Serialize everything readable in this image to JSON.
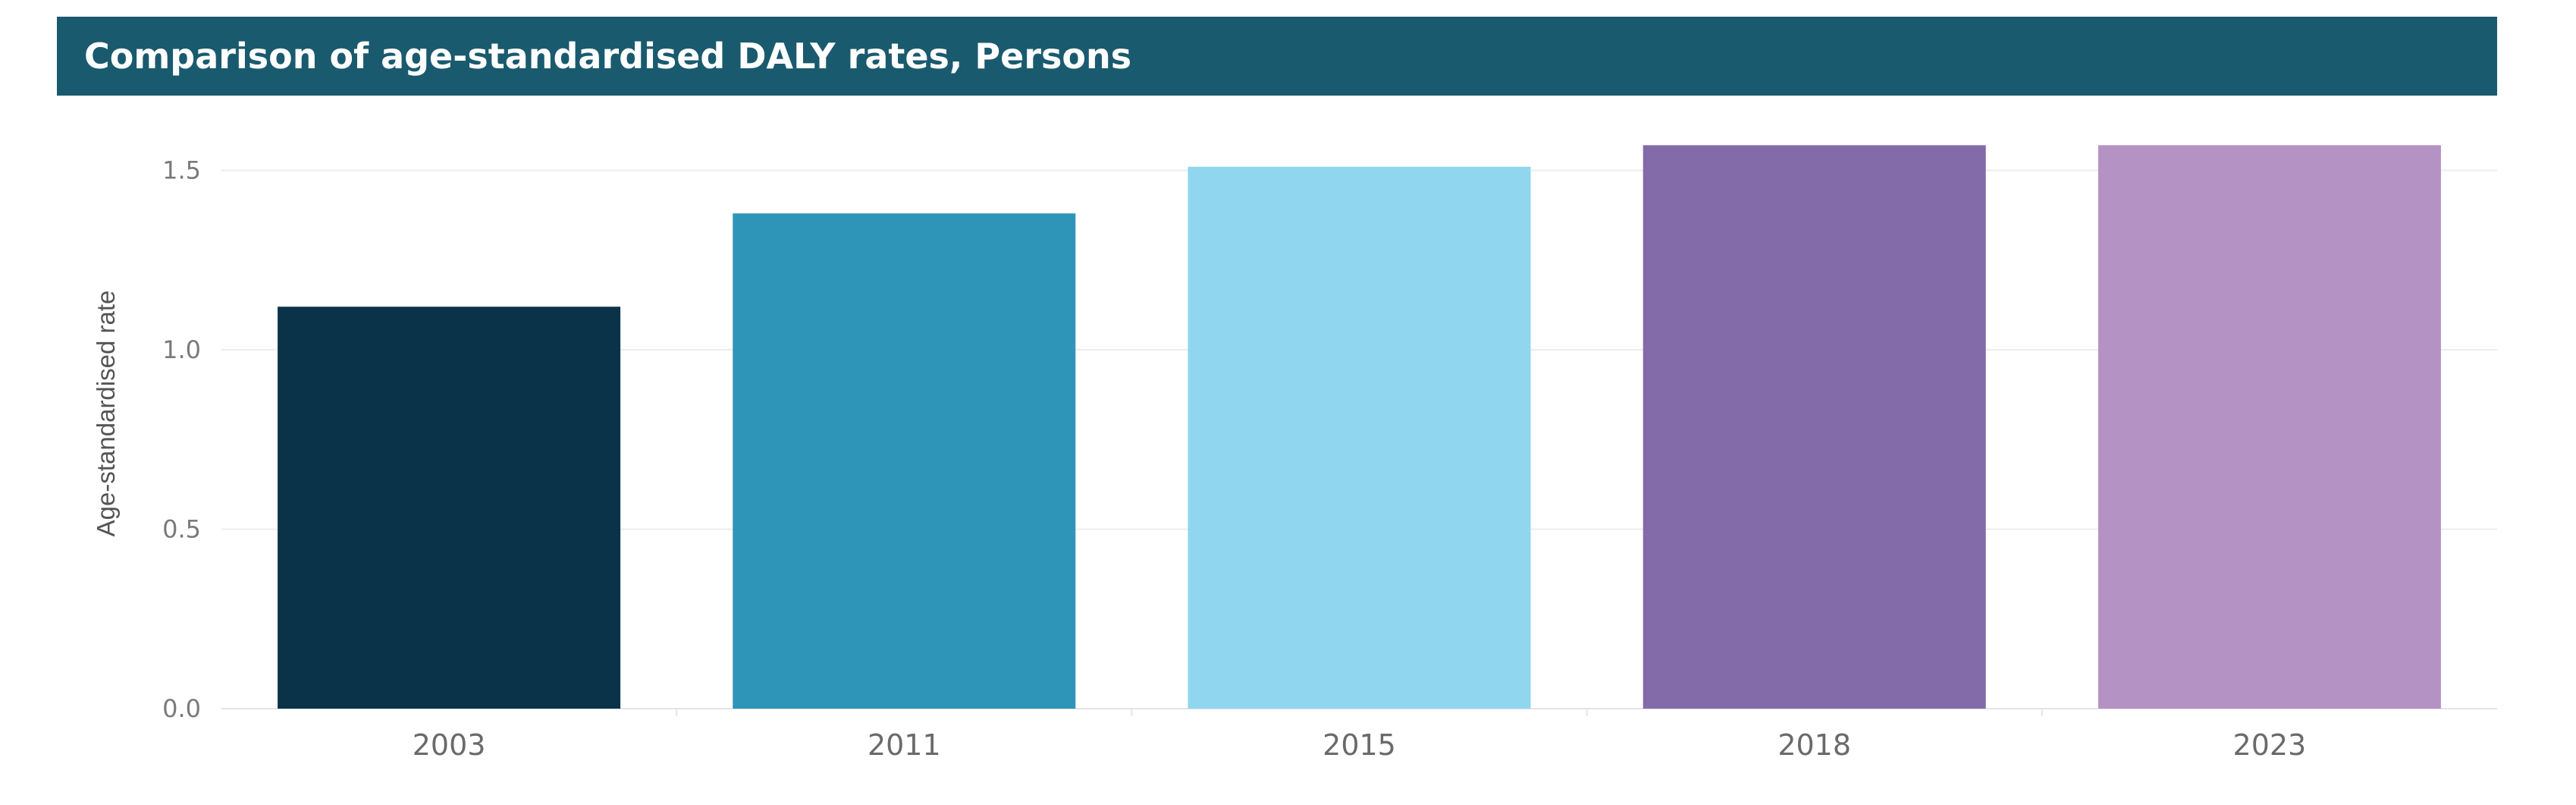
{
  "title": "Comparison of age-standardised DALY rates, Persons",
  "colors": {
    "title_bar": "#1a5a6e",
    "grid": "#ececec"
  },
  "chart_data": {
    "type": "bar",
    "title": "Comparison of age-standardised DALY rates, Persons",
    "xlabel": "",
    "ylabel": "Age-standardised rate",
    "categories": [
      "2003",
      "2011",
      "2015",
      "2018",
      "2023"
    ],
    "values": [
      1.12,
      1.38,
      1.51,
      1.57,
      1.57
    ],
    "bar_colors": [
      "#0a3349",
      "#2e95b8",
      "#90d6ef",
      "#836ba9",
      "#b592c4"
    ],
    "ylim": [
      0,
      1.7
    ],
    "yticks": [
      "0.0",
      "0.5",
      "1.0",
      "1.5"
    ],
    "ytick_values": [
      0,
      0.5,
      1.0,
      1.5
    ],
    "grid": true,
    "legend": "none"
  }
}
